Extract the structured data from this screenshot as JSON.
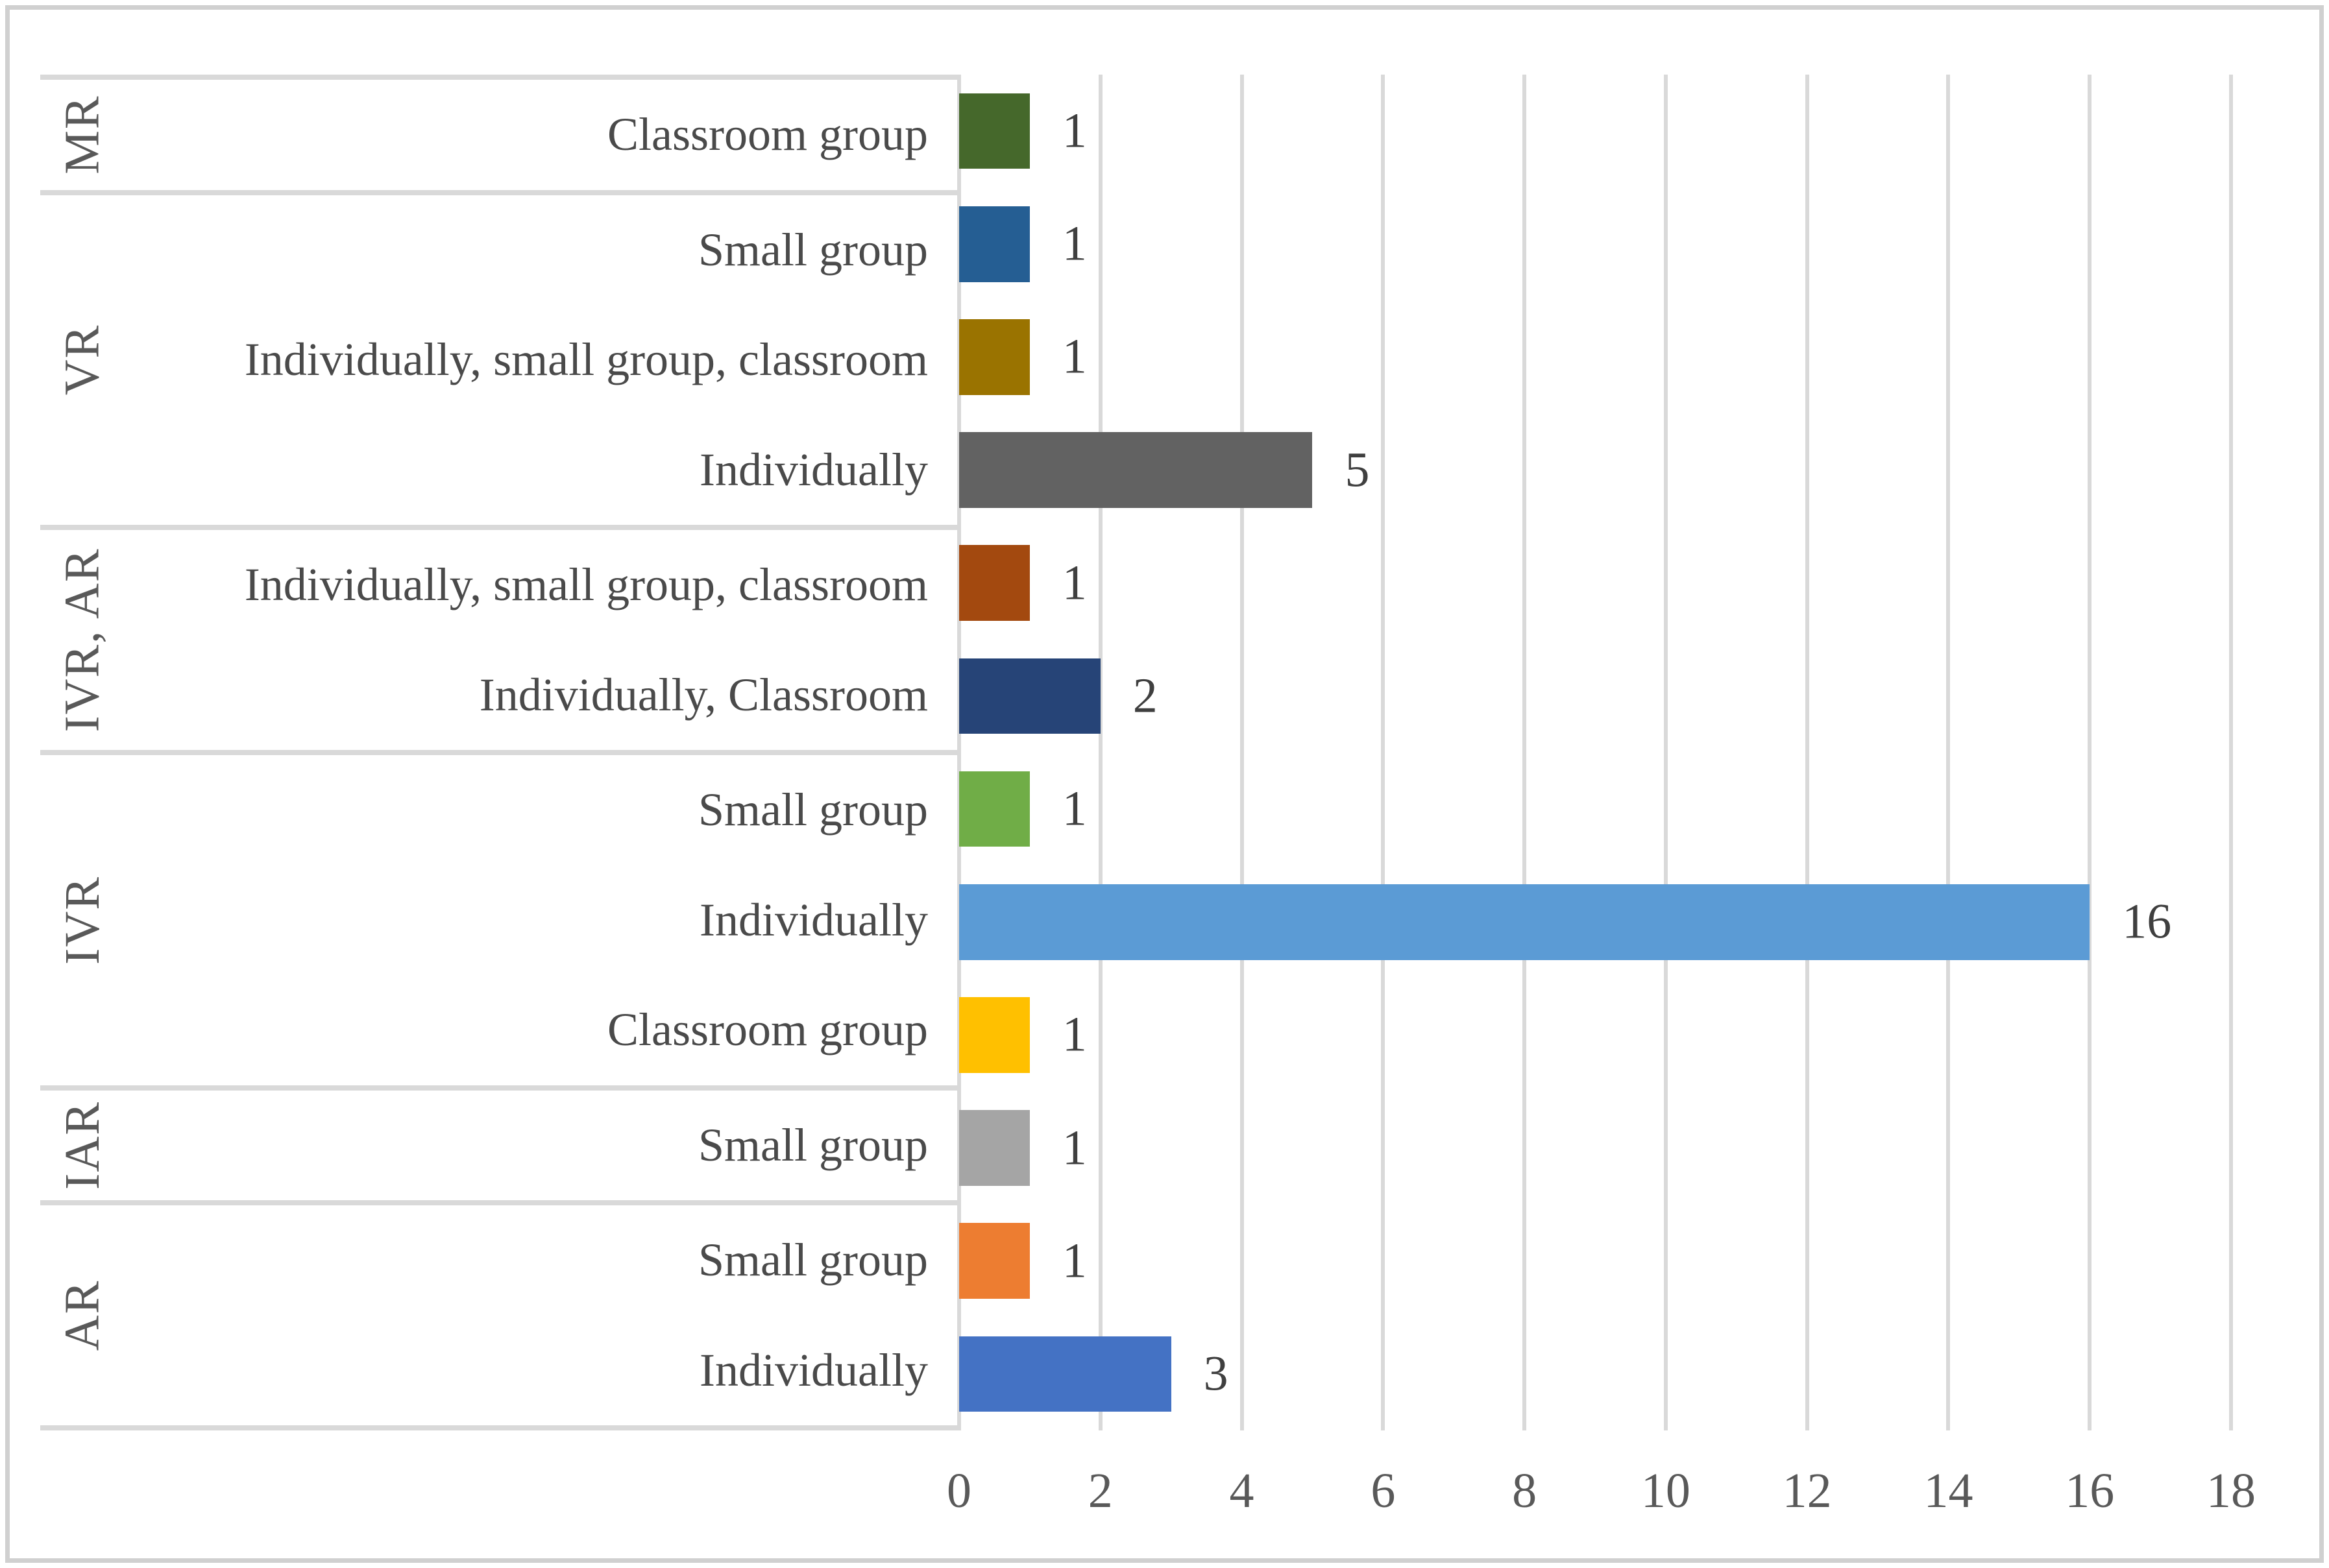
{
  "chart_data": {
    "type": "bar",
    "orientation": "horizontal",
    "title": "",
    "xlabel": "",
    "ylabel": "",
    "xlim": [
      0,
      18
    ],
    "x_ticks": [
      "0",
      "2",
      "4",
      "6",
      "8",
      "10",
      "12",
      "14",
      "16",
      "18"
    ],
    "grid": true,
    "legend": "none",
    "groups": [
      {
        "group": "MR",
        "items": [
          {
            "label": "Classroom group",
            "value": 1,
            "color": "#45682B"
          }
        ]
      },
      {
        "group": "VR",
        "items": [
          {
            "label": "Small group",
            "value": 1,
            "color": "#255E93"
          },
          {
            "label": "Individually, small group, classroom",
            "value": 1,
            "color": "#9A7300"
          },
          {
            "label": "Individually",
            "value": 5,
            "color": "#626262"
          }
        ]
      },
      {
        "group": "IVR, AR",
        "items": [
          {
            "label": "Individually, small group, classroom",
            "value": 1,
            "color": "#A3490F"
          },
          {
            "label": "Individually, Classroom",
            "value": 2,
            "color": "#264477"
          }
        ]
      },
      {
        "group": "IVR",
        "items": [
          {
            "label": "Small group",
            "value": 1,
            "color": "#70AD47"
          },
          {
            "label": "Individually",
            "value": 16,
            "color": "#5B9BD5"
          },
          {
            "label": "Classroom group",
            "value": 1,
            "color": "#FFC000"
          }
        ]
      },
      {
        "group": "IAR",
        "items": [
          {
            "label": "Small group",
            "value": 1,
            "color": "#A5A5A5"
          }
        ]
      },
      {
        "group": "AR",
        "items": [
          {
            "label": "Small group",
            "value": 1,
            "color": "#ED7D31"
          },
          {
            "label": "Individually",
            "value": 3,
            "color": "#4472C4"
          }
        ]
      }
    ],
    "style": {
      "gridline_color": "#D9D9D9",
      "separator_color": "#D9D9D9",
      "outer_border_color": "#D0D0D0",
      "group_label_color": "#595959",
      "category_label_color": "#4A4A4A",
      "value_label_color": "#3F3F3F",
      "tick_label_color": "#595959",
      "background": "#FFFFFF"
    }
  }
}
